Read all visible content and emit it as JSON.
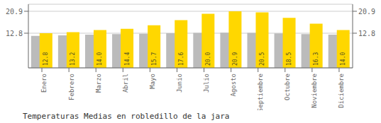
{
  "chart_data": {
    "type": "bar",
    "title": "Temperaturas Medias en robledillo de la jara",
    "categories": [
      "Enero",
      "Febrero",
      "Marzo",
      "Abril",
      "Mayo",
      "Junio",
      "Julio",
      "Agosto",
      "Septiembre",
      "Octubre",
      "Noviembre",
      "Diciembre"
    ],
    "series": [
      {
        "color": "#BBBBBB",
        "values": [
          11.8,
          12.0,
          12.3,
          12.5,
          12.6,
          12.8,
          12.9,
          13.0,
          12.9,
          12.7,
          12.5,
          12.3
        ]
      },
      {
        "color": "#FFD700",
        "values": [
          12.8,
          13.2,
          14.0,
          14.4,
          15.7,
          17.6,
          20.0,
          20.9,
          20.5,
          18.5,
          16.3,
          14.0
        ],
        "value_labels": [
          "12.8",
          "13.2",
          "14.0",
          "14.4",
          "15.7",
          "17.6",
          "20.0",
          "20.9",
          "20.5",
          "18.5",
          "16.3",
          "14.0"
        ],
        "data_labels": true
      }
    ],
    "ylim": [
      0,
      23.5
    ],
    "yticks": [
      12.8,
      20.9
    ],
    "grid": true
  }
}
